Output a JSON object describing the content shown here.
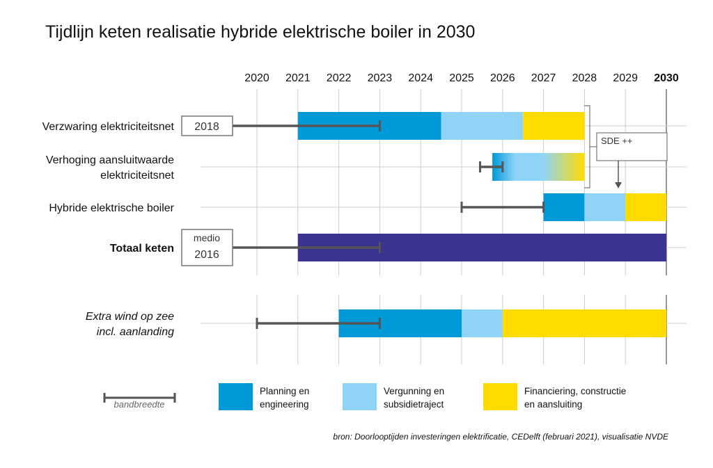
{
  "chart_data": {
    "type": "gantt",
    "title": "Tijdlijn keten realisatie hybride elektrische boiler in 2030",
    "years": [
      "2020",
      "2021",
      "2022",
      "2023",
      "2024",
      "2025",
      "2026",
      "2027",
      "2028",
      "2029",
      "2030"
    ],
    "highlight_year": "2030",
    "muted_year": "2020",
    "colors": {
      "planning": "#0099d8",
      "vergunning": "#8fd3f7",
      "financiering": "#ffdc00",
      "totaal": "#3a3390",
      "bandwidth": "#555555",
      "grid": "#cccccc"
    },
    "rows": [
      {
        "label": [
          "Verzwaring elektriciteitsnet"
        ],
        "bold": false,
        "italic": false,
        "start_box": [
          "2018"
        ],
        "bandwidth": [
          2018,
          2023
        ],
        "segments": [
          {
            "phase": "planning",
            "start": 2021,
            "end": 2024.5
          },
          {
            "phase": "vergunning",
            "start": 2024.5,
            "end": 2026.5
          },
          {
            "phase": "financiering",
            "start": 2026.5,
            "end": 2028
          }
        ]
      },
      {
        "label": [
          "Verhoging aansluitwaarde",
          "elektriciteitsnet"
        ],
        "bold": false,
        "italic": false,
        "bandwidth": [
          2025.45,
          2026
        ],
        "segments": [
          {
            "phase": "gradient",
            "start": 2025.75,
            "end": 2028
          }
        ]
      },
      {
        "label": [
          "Hybride elektrische boiler"
        ],
        "bold": false,
        "italic": false,
        "bandwidth": [
          2025,
          2027
        ],
        "segments": [
          {
            "phase": "planning",
            "start": 2027,
            "end": 2028
          },
          {
            "phase": "vergunning",
            "start": 2028,
            "end": 2029
          },
          {
            "phase": "financiering",
            "start": 2029,
            "end": 2030
          }
        ]
      },
      {
        "label": [
          "Totaal keten"
        ],
        "bold": true,
        "italic": false,
        "start_box": [
          "medio",
          "2016"
        ],
        "bandwidth": [
          2016.5,
          2023
        ],
        "segments": [
          {
            "phase": "totaal",
            "start": 2021,
            "end": 2030
          }
        ]
      },
      {
        "label": [
          "Extra wind op zee",
          "incl. aanlanding"
        ],
        "bold": false,
        "italic": true,
        "bandwidth": [
          2020,
          2023
        ],
        "segments": [
          {
            "phase": "planning",
            "start": 2022,
            "end": 2025
          },
          {
            "phase": "vergunning",
            "start": 2025,
            "end": 2026
          },
          {
            "phase": "financiering",
            "start": 2026,
            "end": 2030
          }
        ]
      }
    ],
    "annotation": {
      "label": "SDE ++"
    },
    "legend": [
      {
        "phase": "bandwidth",
        "label": [
          "bandbreedte"
        ]
      },
      {
        "phase": "planning",
        "label": [
          "Planning en",
          "engineering"
        ]
      },
      {
        "phase": "vergunning",
        "label": [
          "Vergunning en",
          "subsidietraject"
        ]
      },
      {
        "phase": "financiering",
        "label": [
          "Financiering, constructie",
          "en aansluiting"
        ]
      }
    ],
    "source": "bron: Doorlooptijden investeringen elektrificatie, CEDelft (februari 2021), visualisatie NVDE"
  }
}
